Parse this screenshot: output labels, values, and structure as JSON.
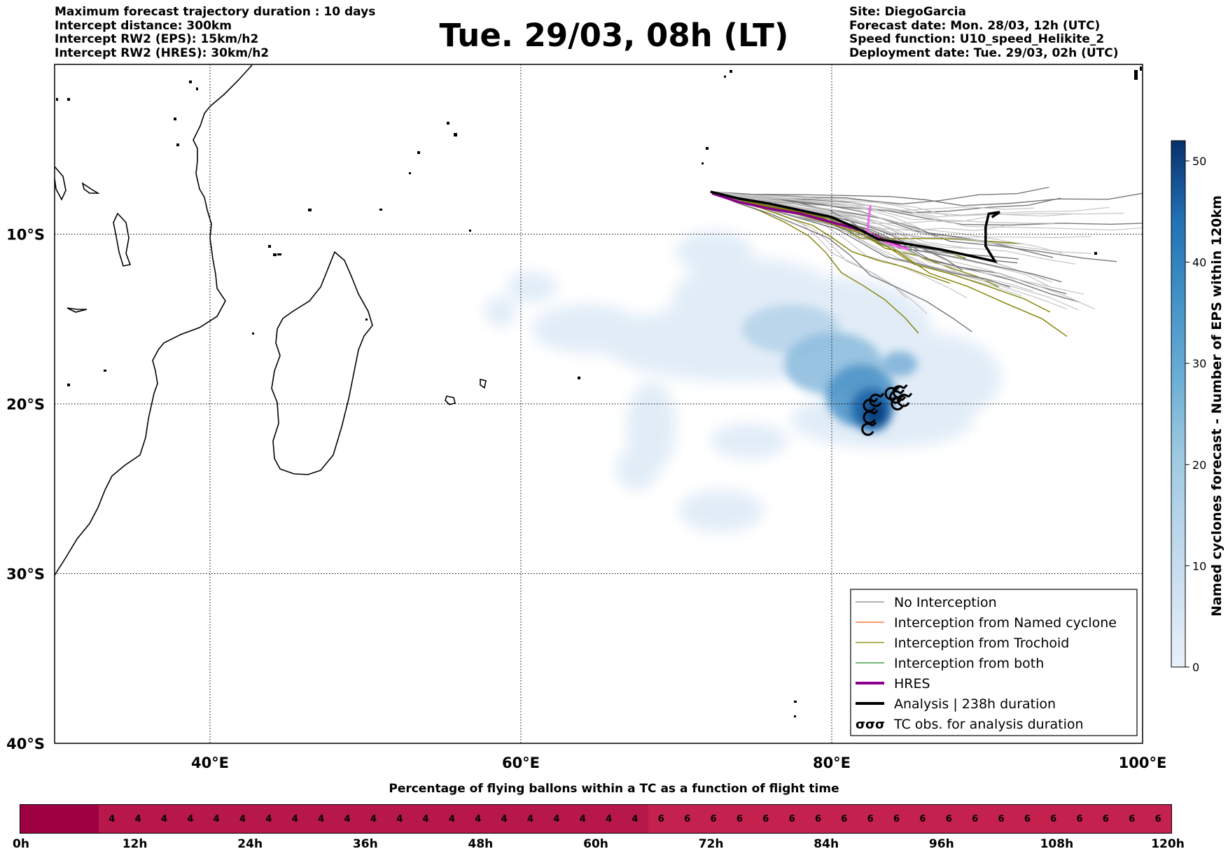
{
  "header": {
    "left": [
      "Maximum forecast trajectory duration : 10 days",
      "Intercept distance: 300km",
      "Intercept RW2 (EPS):  15km/h2",
      "Intercept RW2 (HRES): 30km/h2"
    ],
    "title": "Tue. 29/03, 08h (LT)",
    "right": [
      "Site: DiegoGarcia",
      "Forecast date: Mon. 28/03, 12h (UTC)",
      "Speed function: U10_speed_Helikite_2",
      "Deployment date: Tue. 29/03, 02h (UTC)"
    ]
  },
  "map": {
    "lon_range": [
      30,
      100
    ],
    "lat_range": [
      -40,
      0
    ],
    "lon_ticks": [
      {
        "lon": 40,
        "label": "40°E"
      },
      {
        "lon": 60,
        "label": "60°E"
      },
      {
        "lon": 80,
        "label": "80°E"
      },
      {
        "lon": 100,
        "label": "100°E"
      }
    ],
    "lat_ticks": [
      {
        "lat": -10,
        "label": "10°S"
      },
      {
        "lat": -20,
        "label": "20°S"
      },
      {
        "lat": -30,
        "label": "30°S"
      },
      {
        "lat": -40,
        "label": "40°S"
      }
    ],
    "grid": "dotted",
    "legend": {
      "placement": "lower-right",
      "items": [
        {
          "label": "No Interception",
          "color": "#808080",
          "style": "line"
        },
        {
          "label": "Interception from Named cyclone",
          "color": "#ff5a1e",
          "style": "line"
        },
        {
          "label": "Interception from Trochoid",
          "color": "#808000",
          "style": "line"
        },
        {
          "label": "Interception from both",
          "color": "#228b22",
          "style": "line"
        },
        {
          "label": "HRES",
          "color": "#8b008b",
          "style": "thick-line"
        },
        {
          "label": "Analysis | 238h duration",
          "color": "#000000",
          "style": "thick-line"
        },
        {
          "label": "TC obs. for analysis duration",
          "color": "#000000",
          "style": "tc-symbol"
        }
      ]
    },
    "colorbar": {
      "label": "Named cyclones forecast - Number of EPS within 120km",
      "range": [
        0,
        52
      ],
      "ticks": [
        0,
        10,
        20,
        30,
        40,
        50
      ],
      "colors": [
        "#e4eef8",
        "#c6dbef",
        "#9ecae1",
        "#6baed6",
        "#4292c6",
        "#2171b5",
        "#08519c",
        "#08306b"
      ]
    },
    "tracks": {
      "analysis": [
        [
          72.2,
          -7.5
        ],
        [
          74,
          -7.9
        ],
        [
          76,
          -8.2
        ],
        [
          78,
          -8.6
        ],
        [
          80,
          -9.0
        ],
        [
          81.5,
          -9.6
        ],
        [
          83,
          -10.3
        ],
        [
          85,
          -10.6
        ],
        [
          87,
          -10.9
        ],
        [
          89,
          -11.3
        ],
        [
          90.5,
          -11.6
        ],
        [
          89.9,
          -10.7
        ],
        [
          89.9,
          -9.6
        ],
        [
          90.1,
          -8.8
        ],
        [
          90.8,
          -8.7
        ],
        [
          90.3,
          -9.0
        ]
      ],
      "hres": [
        [
          72.3,
          -7.6
        ],
        [
          74,
          -8.1
        ],
        [
          76,
          -8.5
        ],
        [
          78,
          -8.8
        ],
        [
          80,
          -9.3
        ],
        [
          82,
          -9.8
        ],
        [
          83.5,
          -10.4
        ],
        [
          84.9,
          -10.9
        ],
        [
          83.5,
          -10.5
        ],
        [
          82.3,
          -9.9
        ],
        [
          82.4,
          -8.9
        ],
        [
          82.5,
          -8.3
        ]
      ]
    },
    "tc_obs": [
      [
        82.3,
        -21.5
      ],
      [
        82.4,
        -20.8
      ],
      [
        82.4,
        -20.1
      ],
      [
        82.8,
        -19.8
      ],
      [
        83.8,
        -19.4
      ],
      [
        84.1,
        -19.6
      ],
      [
        84.3,
        -19.3
      ],
      [
        84.2,
        -20.0
      ],
      [
        84.6,
        -19.8
      ]
    ]
  },
  "bottom": {
    "title": "Percentage of flying ballons within a TC as a function of flight time",
    "cells": [
      null,
      null,
      null,
      4,
      4,
      4,
      4,
      4,
      4,
      4,
      4,
      4,
      4,
      4,
      4,
      4,
      4,
      4,
      4,
      4,
      4,
      4,
      4,
      4,
      6,
      6,
      6,
      6,
      6,
      6,
      6,
      6,
      6,
      6,
      6,
      6,
      6,
      6,
      6,
      6,
      6,
      6,
      6,
      6
    ],
    "cell_colors": {
      "empty": "#9e0142",
      "4": "#b8174a",
      "6": "#c5214f"
    },
    "ticks": [
      "0h",
      "12h",
      "24h",
      "36h",
      "48h",
      "60h",
      "72h",
      "84h",
      "96h",
      "108h",
      "120h"
    ]
  }
}
